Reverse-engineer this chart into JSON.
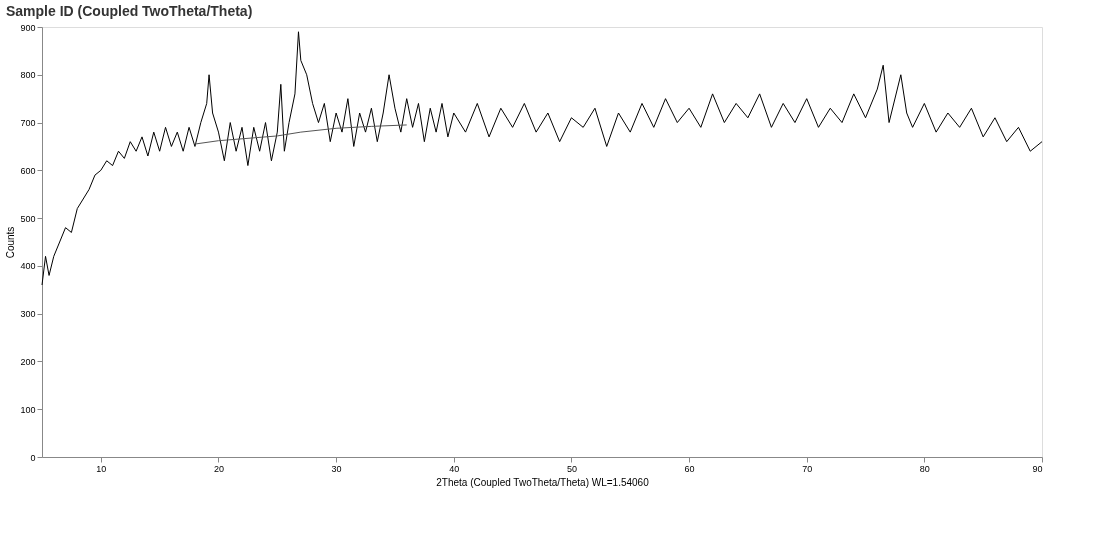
{
  "chart_data": {
    "type": "line",
    "title": "Sample ID (Coupled TwoTheta/Theta)",
    "xlabel": "2Theta (Coupled TwoTheta/Theta) WL=1.54060",
    "ylabel": "Counts",
    "xlim": [
      5,
      90
    ],
    "xticks": [
      10,
      20,
      30,
      40,
      50,
      60,
      70,
      80,
      90
    ],
    "ylim": [
      0,
      900
    ],
    "yticks": [
      0,
      100,
      200,
      300,
      400,
      500,
      600,
      700,
      800,
      900
    ],
    "grid": false,
    "marker": "none",
    "line_style": "solid",
    "series": [
      {
        "color": "#000000",
        "x": [
          5,
          5.3,
          5.6,
          6,
          6.5,
          7,
          7.5,
          8,
          8.5,
          9,
          9.5,
          10,
          10.5,
          11,
          11.5,
          12,
          12.5,
          13,
          13.5,
          14,
          14.5,
          15,
          15.5,
          16,
          16.5,
          17,
          17.5,
          18,
          18.5,
          19,
          19.2,
          19.5,
          20,
          20.5,
          21,
          21.5,
          22,
          22.5,
          23,
          23.5,
          24,
          24.5,
          25,
          25.3,
          25.6,
          26,
          26.5,
          26.8,
          27,
          27.5,
          28,
          28.5,
          29,
          29.5,
          30,
          30.5,
          31,
          31.5,
          32,
          32.5,
          33,
          33.5,
          34,
          34.5,
          35,
          35.5,
          36,
          36.5,
          37,
          37.5,
          38,
          38.5,
          39,
          39.5,
          40,
          41,
          42,
          43,
          44,
          45,
          46,
          47,
          48,
          49,
          50,
          51,
          52,
          53,
          54,
          55,
          56,
          57,
          58,
          59,
          60,
          61,
          62,
          63,
          64,
          65,
          66,
          67,
          68,
          69,
          70,
          71,
          72,
          73,
          74,
          75,
          76,
          76.5,
          77,
          78,
          78.5,
          79,
          80,
          81,
          82,
          83,
          84,
          85,
          86,
          87,
          88,
          89,
          90
        ],
        "values": [
          360,
          420,
          380,
          420,
          450,
          480,
          470,
          520,
          540,
          560,
          590,
          600,
          620,
          610,
          640,
          625,
          660,
          640,
          670,
          630,
          680,
          640,
          690,
          650,
          680,
          640,
          690,
          650,
          700,
          740,
          800,
          720,
          680,
          620,
          700,
          640,
          690,
          610,
          690,
          640,
          700,
          620,
          680,
          780,
          640,
          700,
          760,
          890,
          830,
          800,
          740,
          700,
          740,
          660,
          720,
          680,
          750,
          650,
          720,
          680,
          730,
          660,
          720,
          800,
          730,
          680,
          750,
          690,
          740,
          660,
          730,
          680,
          740,
          670,
          720,
          680,
          740,
          670,
          730,
          690,
          740,
          680,
          720,
          660,
          710,
          690,
          730,
          650,
          720,
          680,
          740,
          690,
          750,
          700,
          730,
          690,
          760,
          700,
          740,
          710,
          760,
          690,
          740,
          700,
          750,
          690,
          730,
          700,
          760,
          710,
          770,
          820,
          700,
          800,
          720,
          690,
          740,
          680,
          720,
          690,
          730,
          670,
          710,
          660,
          690,
          640,
          660
        ]
      },
      {
        "color": "#555555",
        "x": [
          18,
          20,
          25,
          27,
          30,
          33,
          36
        ],
        "values": [
          655,
          662,
          672,
          680,
          688,
          692,
          695
        ]
      }
    ]
  }
}
